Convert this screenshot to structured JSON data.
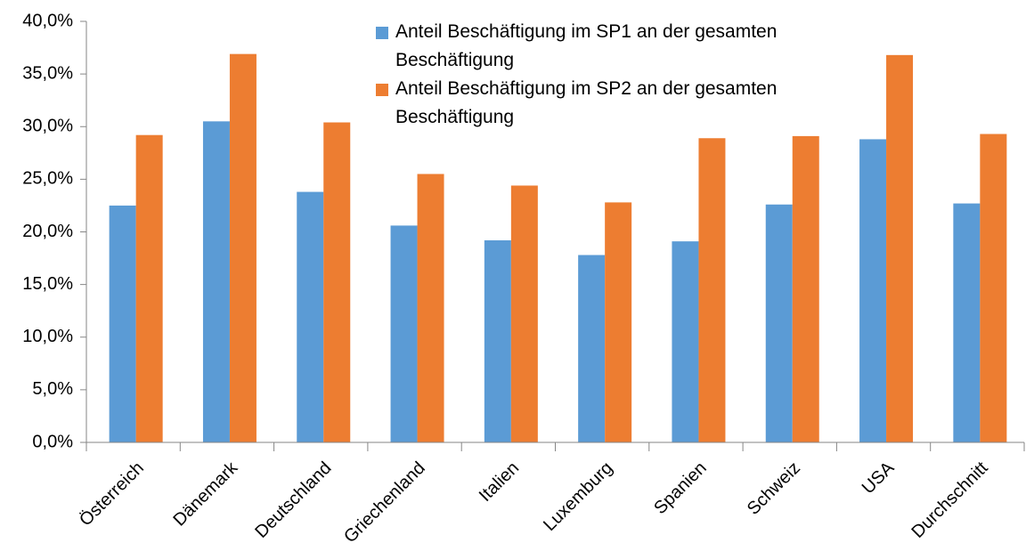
{
  "chart_data": {
    "type": "bar",
    "categories": [
      "Österreich",
      "Dänemark",
      "Deutschland",
      "Griechenland",
      "Italien",
      "Luxemburg",
      "Spanien",
      "Schweiz",
      "USA",
      "Durchschnitt"
    ],
    "series": [
      {
        "name": "Anteil Beschäftigung im SP1 an der gesamten Beschäftigung",
        "color": "#5b9bd5",
        "values": [
          22.5,
          30.5,
          23.8,
          20.6,
          19.2,
          17.8,
          19.1,
          22.6,
          28.8,
          22.7
        ]
      },
      {
        "name": "Anteil Beschäftigung im SP2 an der gesamten Beschäftigung",
        "color": "#ed7d31",
        "values": [
          29.2,
          36.9,
          30.4,
          25.5,
          24.4,
          22.8,
          28.9,
          29.1,
          36.8,
          29.3
        ]
      }
    ],
    "ylim": [
      0,
      40
    ],
    "yticks": [
      {
        "value": 0,
        "label": "0,0%"
      },
      {
        "value": 5,
        "label": "5,0%"
      },
      {
        "value": 10,
        "label": "10,0%"
      },
      {
        "value": 15,
        "label": "15,0%"
      },
      {
        "value": 20,
        "label": "20,0%"
      },
      {
        "value": 25,
        "label": "25,0%"
      },
      {
        "value": 30,
        "label": "30,0%"
      },
      {
        "value": 35,
        "label": "35,0%"
      },
      {
        "value": 40,
        "label": "40,0%"
      }
    ],
    "grid": false,
    "legend": "top"
  }
}
